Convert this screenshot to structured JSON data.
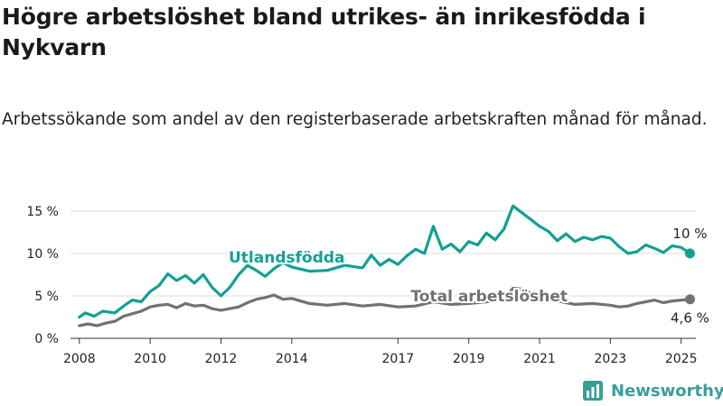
{
  "title": "Högre arbetslöshet bland utrikes- än inrikesfödda i Nykvarn",
  "subtitle": "Arbetssökande som andel av den registerbaserade arbetskraften månad för månad.",
  "brand": {
    "name": "Newsworthy",
    "icon": "newsworthy-logo-icon"
  },
  "colors": {
    "foreign_born": "#13a094",
    "total": "#717176",
    "axis": "#333333",
    "grid": "#dddddd"
  },
  "chart_data": {
    "type": "line",
    "title": "Högre arbetslöshet bland utrikes- än inrikesfödda i Nykvarn",
    "subtitle": "Arbetssökande som andel av den registerbaserade arbetskraften månad för månad.",
    "xlabel": "",
    "ylabel": "",
    "x_ticks": [
      "2008",
      "2010",
      "2012",
      "2014",
      "2017",
      "2019",
      "2021",
      "2023",
      "2025"
    ],
    "y_ticks": [
      "0 %",
      "5 %",
      "10 %",
      "15 %"
    ],
    "ylim": [
      0,
      17
    ],
    "xlim": [
      "2007-10",
      "2025-06"
    ],
    "grid": "horizontal",
    "legend": "direct labels",
    "series": [
      {
        "name": "Utlandsfödda",
        "end_label": "10 %",
        "points": [
          [
            "2008-01",
            2.5
          ],
          [
            "2008-03",
            3.0
          ],
          [
            "2008-06",
            2.6
          ],
          [
            "2008-09",
            3.2
          ],
          [
            "2009-01",
            3.0
          ],
          [
            "2009-04",
            3.8
          ],
          [
            "2009-07",
            4.5
          ],
          [
            "2009-10",
            4.3
          ],
          [
            "2010-01",
            5.5
          ],
          [
            "2010-04",
            6.2
          ],
          [
            "2010-07",
            7.6
          ],
          [
            "2010-10",
            6.8
          ],
          [
            "2011-01",
            7.4
          ],
          [
            "2011-04",
            6.5
          ],
          [
            "2011-07",
            7.5
          ],
          [
            "2011-10",
            6.0
          ],
          [
            "2012-01",
            5.0
          ],
          [
            "2012-04",
            6.0
          ],
          [
            "2012-07",
            7.5
          ],
          [
            "2012-10",
            8.6
          ],
          [
            "2013-01",
            8.0
          ],
          [
            "2013-04",
            7.3
          ],
          [
            "2013-07",
            8.2
          ],
          [
            "2013-10",
            8.9
          ],
          [
            "2014-01",
            8.4
          ],
          [
            "2014-07",
            7.9
          ],
          [
            "2015-01",
            8.0
          ],
          [
            "2015-07",
            8.6
          ],
          [
            "2016-01",
            8.3
          ],
          [
            "2016-04",
            9.8
          ],
          [
            "2016-07",
            8.6
          ],
          [
            "2016-10",
            9.3
          ],
          [
            "2017-01",
            8.7
          ],
          [
            "2017-04",
            9.7
          ],
          [
            "2017-07",
            10.5
          ],
          [
            "2017-10",
            10.0
          ],
          [
            "2018-01",
            13.2
          ],
          [
            "2018-04",
            10.5
          ],
          [
            "2018-07",
            11.1
          ],
          [
            "2018-10",
            10.2
          ],
          [
            "2019-01",
            11.4
          ],
          [
            "2019-04",
            11.0
          ],
          [
            "2019-07",
            12.4
          ],
          [
            "2019-10",
            11.6
          ],
          [
            "2020-01",
            12.9
          ],
          [
            "2020-04",
            15.6
          ],
          [
            "2020-07",
            14.8
          ],
          [
            "2020-10",
            14.0
          ],
          [
            "2021-01",
            13.2
          ],
          [
            "2021-04",
            12.6
          ],
          [
            "2021-07",
            11.5
          ],
          [
            "2021-10",
            12.3
          ],
          [
            "2022-01",
            11.4
          ],
          [
            "2022-04",
            11.9
          ],
          [
            "2022-07",
            11.6
          ],
          [
            "2022-10",
            12.0
          ],
          [
            "2023-01",
            11.8
          ],
          [
            "2023-04",
            10.8
          ],
          [
            "2023-07",
            10.0
          ],
          [
            "2023-10",
            10.2
          ],
          [
            "2024-01",
            11.0
          ],
          [
            "2024-04",
            10.6
          ],
          [
            "2024-07",
            10.1
          ],
          [
            "2024-10",
            10.9
          ],
          [
            "2025-01",
            10.7
          ],
          [
            "2025-04",
            10.0
          ]
        ]
      },
      {
        "name": "Total arbetslöshet",
        "end_label": "4,6 %",
        "points": [
          [
            "2008-01",
            1.5
          ],
          [
            "2008-04",
            1.7
          ],
          [
            "2008-07",
            1.5
          ],
          [
            "2008-10",
            1.8
          ],
          [
            "2009-01",
            2.0
          ],
          [
            "2009-04",
            2.6
          ],
          [
            "2009-07",
            2.9
          ],
          [
            "2009-10",
            3.2
          ],
          [
            "2010-01",
            3.7
          ],
          [
            "2010-04",
            3.9
          ],
          [
            "2010-07",
            4.0
          ],
          [
            "2010-10",
            3.6
          ],
          [
            "2011-01",
            4.1
          ],
          [
            "2011-04",
            3.8
          ],
          [
            "2011-07",
            3.9
          ],
          [
            "2011-10",
            3.5
          ],
          [
            "2012-01",
            3.3
          ],
          [
            "2012-04",
            3.5
          ],
          [
            "2012-07",
            3.7
          ],
          [
            "2012-10",
            4.2
          ],
          [
            "2013-01",
            4.6
          ],
          [
            "2013-04",
            4.8
          ],
          [
            "2013-07",
            5.1
          ],
          [
            "2013-10",
            4.6
          ],
          [
            "2014-01",
            4.7
          ],
          [
            "2014-07",
            4.1
          ],
          [
            "2015-01",
            3.9
          ],
          [
            "2015-07",
            4.1
          ],
          [
            "2016-01",
            3.8
          ],
          [
            "2016-07",
            4.0
          ],
          [
            "2017-01",
            3.7
          ],
          [
            "2017-07",
            3.8
          ],
          [
            "2018-01",
            4.3
          ],
          [
            "2018-07",
            4.0
          ],
          [
            "2019-01",
            4.1
          ],
          [
            "2019-07",
            4.3
          ],
          [
            "2020-01",
            4.6
          ],
          [
            "2020-04",
            5.9
          ],
          [
            "2020-07",
            5.8
          ],
          [
            "2020-10",
            5.3
          ],
          [
            "2021-01",
            5.0
          ],
          [
            "2021-07",
            4.4
          ],
          [
            "2022-01",
            4.0
          ],
          [
            "2022-07",
            4.1
          ],
          [
            "2023-01",
            3.9
          ],
          [
            "2023-04",
            3.7
          ],
          [
            "2023-07",
            3.8
          ],
          [
            "2023-10",
            4.1
          ],
          [
            "2024-01",
            4.3
          ],
          [
            "2024-04",
            4.5
          ],
          [
            "2024-07",
            4.2
          ],
          [
            "2024-10",
            4.4
          ],
          [
            "2025-01",
            4.5
          ],
          [
            "2025-04",
            4.6
          ]
        ]
      }
    ]
  }
}
